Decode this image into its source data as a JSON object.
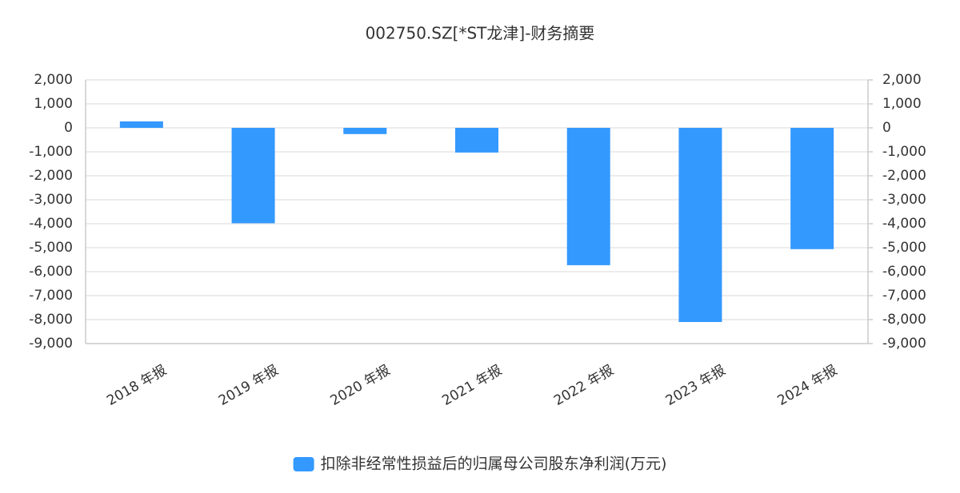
{
  "chart_data": {
    "type": "bar",
    "title": "002750.SZ[*ST龙津]-财务摘要",
    "categories": [
      "2018 年报",
      "2019 年报",
      "2020 年报",
      "2021 年报",
      "2022 年报",
      "2023 年报",
      "2024 年报"
    ],
    "series": [
      {
        "name": "扣除非经常性损益后的归属母公司股东净利润(万元)",
        "color": "#3399ff",
        "values": [
          270,
          -3980,
          -260,
          -1030,
          -5730,
          -8100,
          -5060
        ]
      }
    ],
    "ylim": [
      -9000,
      2000
    ],
    "yticks": [
      {
        "value": 2000,
        "label": "2,000"
      },
      {
        "value": 1000,
        "label": "1,000"
      },
      0,
      {
        "value": -1000,
        "label": "-1,000"
      },
      {
        "value": -2000,
        "label": "-2,000"
      },
      {
        "value": -3000,
        "label": "-3,000"
      },
      {
        "value": -4000,
        "label": "-4,000"
      },
      {
        "value": -5000,
        "label": "-5,000"
      },
      {
        "value": -6000,
        "label": "-6,000"
      },
      {
        "value": -7000,
        "label": "-7,000"
      },
      {
        "value": -8000,
        "label": "-8,000"
      },
      {
        "value": -9000,
        "label": "-9,000"
      }
    ],
    "y2lim": [
      -9000,
      2000
    ],
    "y2ticks": [
      {
        "value": 2000,
        "label": "2,000"
      },
      {
        "value": 1000,
        "label": "1,000"
      },
      0,
      {
        "value": -1000,
        "label": "-1,000"
      },
      {
        "value": -2000,
        "label": "-2,000"
      },
      {
        "value": -3000,
        "label": "-3,000"
      },
      {
        "value": -4000,
        "label": "-4,000"
      },
      {
        "value": -5000,
        "label": "-5,000"
      },
      {
        "value": -6000,
        "label": "-6,000"
      },
      {
        "value": -7000,
        "label": "-7,000"
      },
      {
        "value": -8000,
        "label": "-8,000"
      },
      {
        "value": -9000,
        "label": "-9,000"
      }
    ],
    "grid": true
  }
}
